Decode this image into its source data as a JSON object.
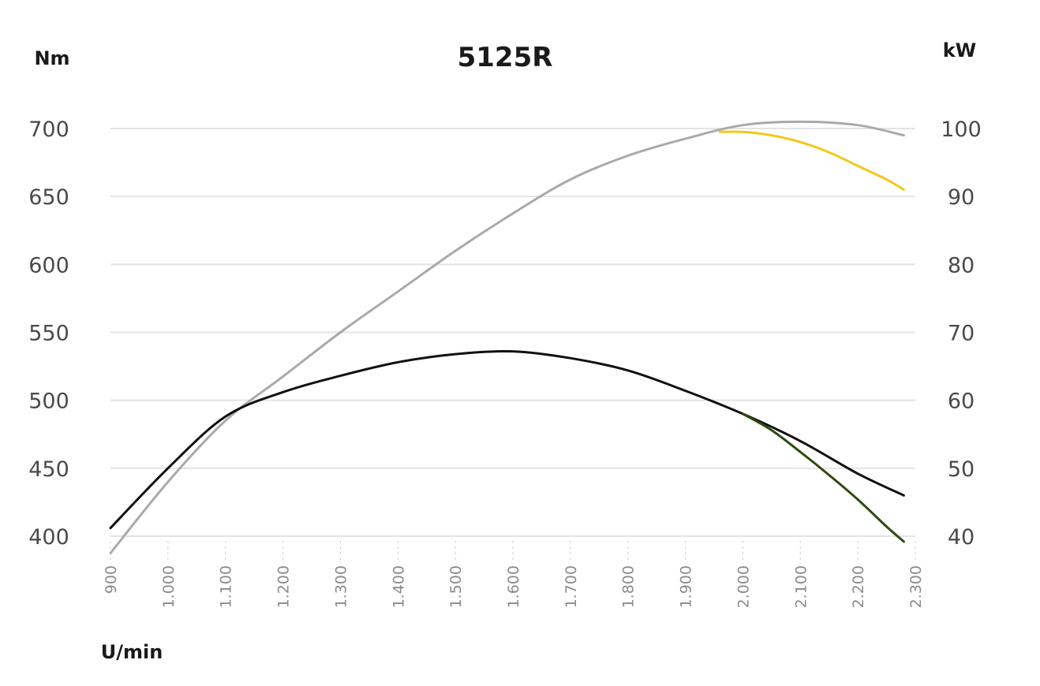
{
  "chart_data": {
    "type": "line",
    "title": "5125R",
    "xlabel": "U/min",
    "ylabel_left": "Nm",
    "ylabel_right": "kW",
    "x_ticks": [
      "900",
      "1.000",
      "1.100",
      "1.200",
      "1.300",
      "1.400",
      "1.500",
      "1.600",
      "1.700",
      "1.800",
      "1.900",
      "2.000",
      "2.100",
      "2.200",
      "2.300"
    ],
    "y_left_ticks": [
      "400",
      "450",
      "500",
      "550",
      "600",
      "650",
      "700"
    ],
    "y_right_ticks": [
      "40",
      "50",
      "60",
      "70",
      "80",
      "90",
      "100"
    ],
    "xlim": [
      900,
      2300
    ],
    "ylim_left": [
      400,
      700
    ],
    "ylim_right": [
      40,
      100
    ],
    "grid": true,
    "series": [
      {
        "axis": "left",
        "color": "#111111",
        "x": [
          900,
          1000,
          1100,
          1200,
          1300,
          1400,
          1500,
          1600,
          1700,
          1800,
          1900,
          2000,
          2100,
          2200,
          2280
        ],
        "values": [
          406,
          450,
          488,
          506,
          518,
          528,
          534,
          536,
          531,
          522,
          507,
          490,
          470,
          446,
          430
        ]
      },
      {
        "axis": "left",
        "color": "#2f4a12",
        "x": [
          2000,
          2050,
          2100,
          2150,
          2200,
          2250,
          2280
        ],
        "values": [
          490,
          478,
          462,
          445,
          427,
          407,
          396
        ]
      },
      {
        "axis": "right",
        "color": "#aaaaaa",
        "x": [
          900,
          1000,
          1100,
          1200,
          1300,
          1400,
          1500,
          1600,
          1700,
          1800,
          1900,
          2000,
          2100,
          2200,
          2280
        ],
        "values": [
          37.5,
          48,
          57,
          63.5,
          70,
          76,
          82,
          87.5,
          92.5,
          96,
          98.5,
          100.5,
          101,
          100.5,
          99
        ]
      },
      {
        "axis": "right",
        "color": "#f2c81c",
        "x": [
          1960,
          2000,
          2050,
          2100,
          2150,
          2200,
          2250,
          2280
        ],
        "values": [
          99.5,
          99.5,
          99,
          98,
          96.5,
          94.5,
          92.5,
          91
        ]
      }
    ]
  }
}
